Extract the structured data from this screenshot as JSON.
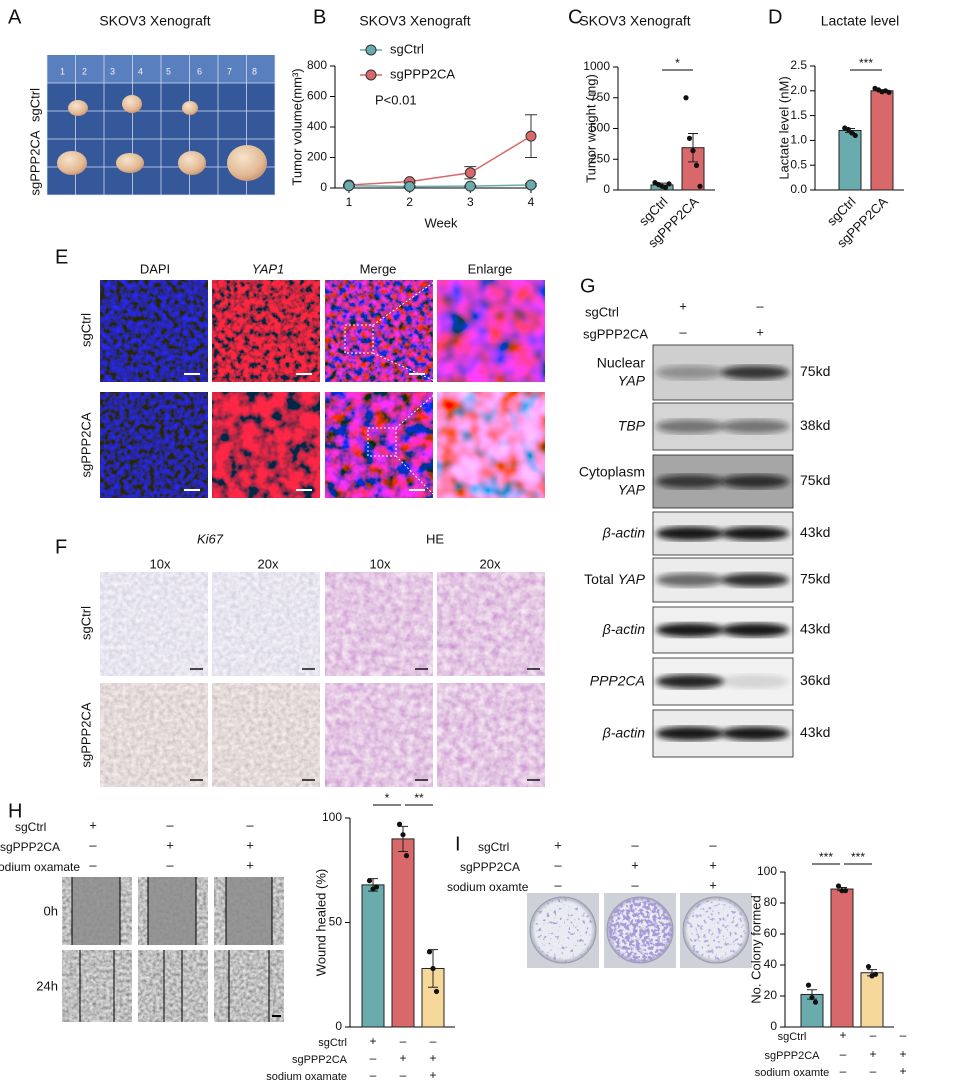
{
  "panel_labels": [
    "A",
    "B",
    "C",
    "D",
    "E",
    "F",
    "G",
    "H",
    "I"
  ],
  "panel_a": {
    "title": "SKOV3 Xenograft",
    "ruler": [
      "1",
      "2",
      "3",
      "4",
      "5",
      "6",
      "7",
      "8"
    ],
    "rows": [
      "sgCtrl",
      "sgPPP2CA"
    ]
  },
  "panel_e": {
    "columns": [
      "DAPI",
      "YAP1",
      "Merge",
      "Enlarge"
    ],
    "rows": [
      "sgCtrl",
      "sgPPP2CA"
    ]
  },
  "panel_f": {
    "groups": [
      "Ki67",
      "HE"
    ],
    "columns": [
      "10x",
      "20x",
      "10x",
      "20x"
    ],
    "rows": [
      "sgCtrl",
      "sgPPP2CA"
    ]
  },
  "panel_g": {
    "conditions": [
      {
        "name": "sgCtrl",
        "marks": [
          "+",
          "–"
        ]
      },
      {
        "name": "sgPPP2CA",
        "marks": [
          "–",
          "+"
        ]
      }
    ],
    "blots": [
      {
        "lines": [
          [
            {
              "text": "Nuclear",
              "italic": false
            }
          ],
          [
            {
              "text": "YAP",
              "italic": true
            }
          ]
        ],
        "size": "75kd"
      },
      {
        "lines": [
          [
            {
              "text": "TBP",
              "italic": true
            }
          ]
        ],
        "size": "38kd"
      },
      {
        "lines": [
          [
            {
              "text": "Cytoplasm",
              "italic": false
            }
          ],
          [
            {
              "text": "YAP",
              "italic": true
            }
          ]
        ],
        "size": "75kd"
      },
      {
        "lines": [
          [
            {
              "text": "β-actin",
              "italic": true
            }
          ]
        ],
        "size": "43kd"
      },
      {
        "lines": [
          [
            {
              "text": "Total",
              "italic": false
            },
            {
              "text": "YAP",
              "italic": true
            }
          ]
        ],
        "size": "75kd"
      },
      {
        "lines": [
          [
            {
              "text": "β-actin",
              "italic": true
            }
          ]
        ],
        "size": "43kd"
      },
      {
        "lines": [
          [
            {
              "text": "PPP2CA",
              "italic": true
            }
          ]
        ],
        "size": "36kd"
      },
      {
        "lines": [
          [
            {
              "text": "β-actin",
              "italic": true
            }
          ]
        ],
        "size": "43kd"
      }
    ]
  },
  "panel_h": {
    "conditions": [
      {
        "name": "sgCtrl",
        "marks": [
          "+",
          "–",
          "–"
        ]
      },
      {
        "name": "sgPPP2CA",
        "marks": [
          "–",
          "+",
          "+"
        ]
      },
      {
        "name": "sodium oxamate",
        "marks": [
          "–",
          "–",
          "+"
        ]
      }
    ],
    "rows": [
      "0h",
      "24h"
    ]
  },
  "panel_i": {
    "conditions": [
      {
        "name": "sgCtrl",
        "marks": [
          "+",
          "–",
          "–"
        ]
      },
      {
        "name": "sgPPP2CA",
        "marks": [
          "–",
          "+",
          "+"
        ]
      },
      {
        "name": "sodium oxamte",
        "marks": [
          "–",
          "–",
          "+"
        ]
      }
    ]
  },
  "chart_data": [
    {
      "type": "line",
      "title": "SKOV3 Xenograft",
      "x_label": "Week",
      "y_label": "Tumor volume(mm³)",
      "annotation": "P<0.01",
      "x": [
        1,
        2,
        3,
        4
      ],
      "xlim": [
        0.77,
        4
      ],
      "xticks": [
        1,
        2,
        3,
        4
      ],
      "ylim": [
        0,
        800
      ],
      "yticks": [
        0,
        200,
        400,
        600,
        800
      ],
      "series": [
        {
          "name": "sgCtrl",
          "color": "#6aacad",
          "values": [
            15,
            10,
            12,
            20
          ],
          "errors": [
            5,
            5,
            5,
            8
          ]
        },
        {
          "name": "sgPPP2CA",
          "color": "#d9686b",
          "values": [
            20,
            42,
            100,
            340
          ],
          "errors": [
            5,
            8,
            40,
            140
          ]
        }
      ]
    },
    {
      "type": "bar",
      "title": "SKOV3 Xenograft",
      "y_label": "Tumor weight (mg)",
      "categories": [
        "sgCtrl",
        "sgPPP2CA"
      ],
      "values": [
        41,
        344
      ],
      "errors": [
        15,
        115
      ],
      "points": [
        [
          60,
          45,
          30,
          20,
          50
        ],
        [
          750,
          420,
          320,
          200,
          30
        ]
      ],
      "colors": [
        "#6aacad",
        "#d9686b"
      ],
      "ylim": [
        0,
        1000
      ],
      "yticks": [
        0,
        250,
        500,
        750,
        1000
      ],
      "significance": [
        {
          "label": "*",
          "between": [
            0,
            1
          ]
        }
      ]
    },
    {
      "type": "bar",
      "title": "Lactate level",
      "y_label": "Lactate level (nM)",
      "categories": [
        "sgCtrl",
        "sgPPP2CA"
      ],
      "values": [
        1.2,
        2.0
      ],
      "errors": [
        0.04,
        0.02
      ],
      "points": [
        [
          1.25,
          1.22,
          1.15,
          1.1
        ],
        [
          2.05,
          2.02,
          1.98,
          2.0,
          1.97
        ]
      ],
      "colors": [
        "#6aacad",
        "#d9686b"
      ],
      "ylim": [
        0,
        2.5
      ],
      "yticks": [
        {
          "value": 0,
          "label": "0.0"
        },
        0.5,
        {
          "value": 1,
          "label": "1.0"
        },
        1.5,
        {
          "value": 2,
          "label": "2.0"
        },
        2.5
      ],
      "significance": [
        {
          "label": "***",
          "between": [
            0,
            1
          ]
        }
      ]
    },
    {
      "type": "bar",
      "y_label": "Wound healed (%)",
      "categories": [
        null,
        null,
        null
      ],
      "values": [
        68,
        90,
        28
      ],
      "errors": [
        3,
        6,
        9
      ],
      "points": [
        [
          70,
          66,
          67
        ],
        [
          97,
          92,
          82
        ],
        [
          36,
          28,
          17
        ]
      ],
      "colors": [
        "#6aacad",
        "#d9686b",
        "#f6d99a"
      ],
      "ylim": [
        0,
        100
      ],
      "yticks": [
        0,
        50,
        100
      ],
      "significance": [
        {
          "label": "*",
          "between": [
            0,
            1
          ]
        },
        {
          "label": "**",
          "between": [
            1,
            2
          ]
        }
      ],
      "conditions": [
        {
          "name": "sgCtrl",
          "marks": [
            "+",
            "–",
            "–"
          ]
        },
        {
          "name": "sgPPP2CA",
          "marks": [
            "–",
            "+",
            "+"
          ]
        },
        {
          "name": "sodium oxamate",
          "marks": [
            "–",
            "–",
            "+"
          ]
        }
      ]
    },
    {
      "type": "bar",
      "y_label": "No. Colony formed",
      "categories": [
        null,
        null,
        null
      ],
      "values": [
        21,
        89,
        35
      ],
      "errors": [
        3,
        1,
        2
      ],
      "points": [
        [
          27,
          19,
          16
        ],
        [
          91,
          88,
          88
        ],
        [
          39,
          33,
          34
        ]
      ],
      "colors": [
        "#6aacad",
        "#d9686b",
        "#f6d99a"
      ],
      "ylim": [
        0,
        100
      ],
      "yticks": [
        0,
        20,
        40,
        60,
        80,
        100
      ],
      "significance": [
        {
          "label": "***",
          "between": [
            0,
            1
          ]
        },
        {
          "label": "***",
          "between": [
            1,
            2
          ]
        }
      ],
      "conditions": [
        {
          "name": "sgCtrl",
          "marks": [
            "+",
            "–",
            "–"
          ]
        },
        {
          "name": "sgPPP2CA",
          "marks": [
            "–",
            "+",
            "+"
          ]
        },
        {
          "name": "sodium oxamte",
          "marks": [
            "–",
            "–",
            "+"
          ]
        }
      ]
    }
  ]
}
